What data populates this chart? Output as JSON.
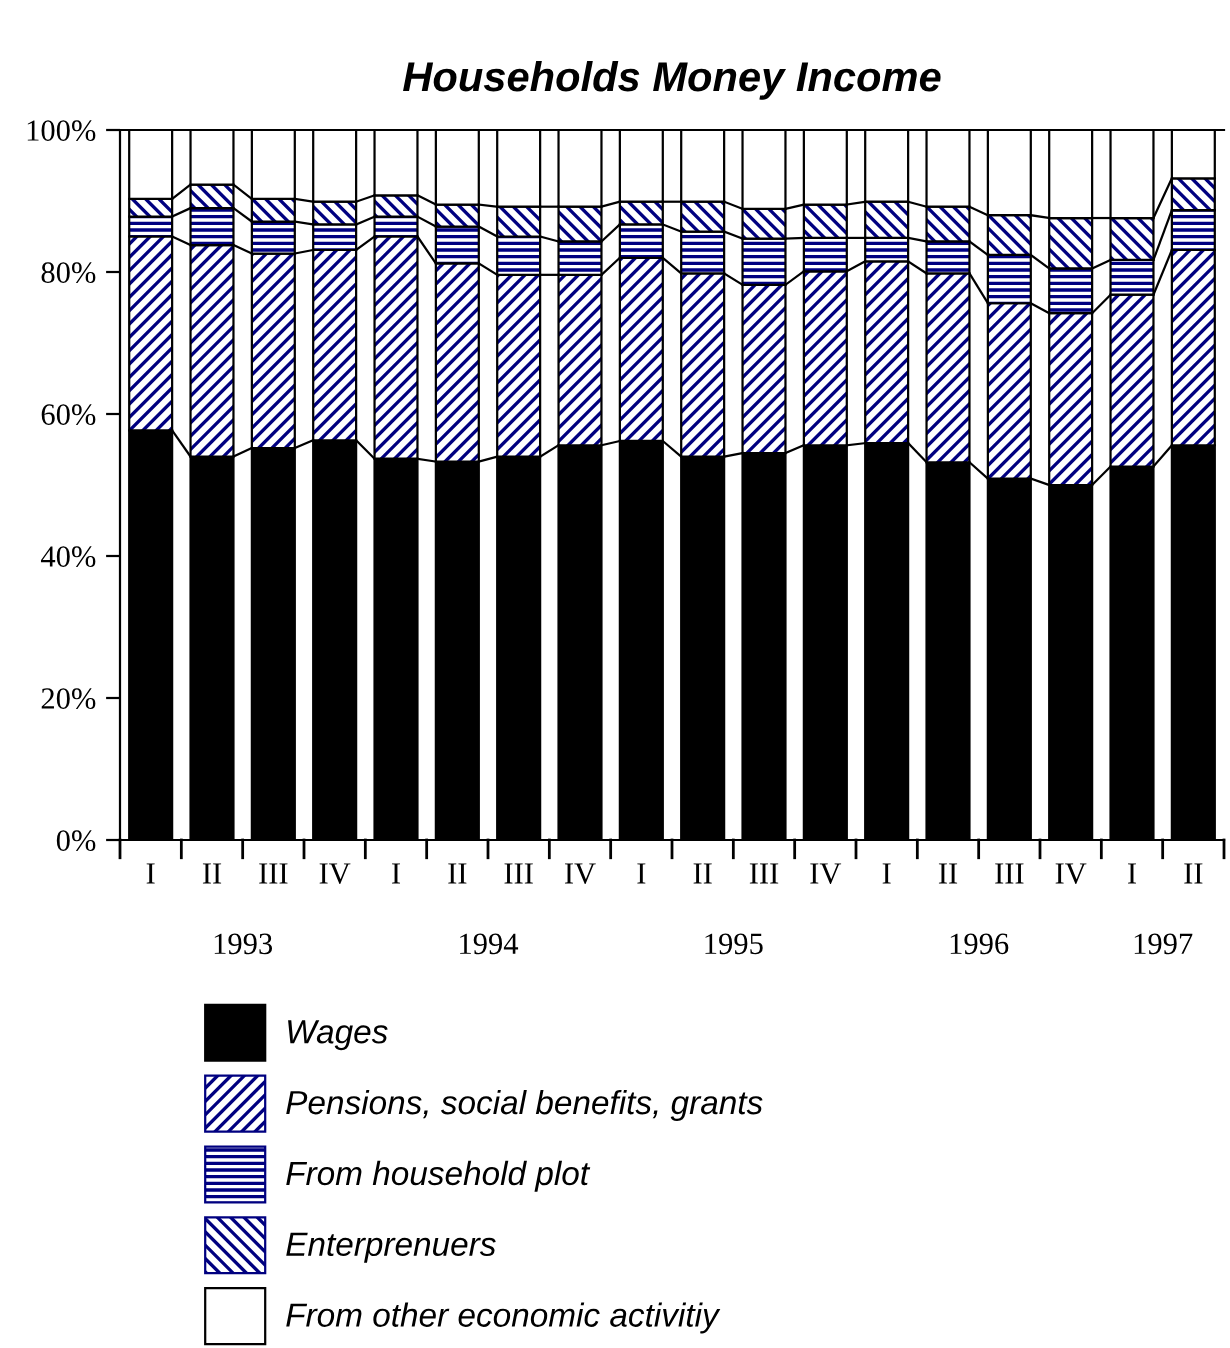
{
  "chart_data": {
    "type": "bar",
    "stacked": true,
    "title": "Households Money Income",
    "categories": [
      "I",
      "II",
      "III",
      "IV",
      "I",
      "II",
      "III",
      "IV",
      "I",
      "II",
      "III",
      "IV",
      "I",
      "II",
      "III",
      "IV",
      "I",
      "II"
    ],
    "annotations": [
      "1993",
      "1994",
      "1995",
      "1996",
      "1997"
    ],
    "series": [
      {
        "name": "Wages",
        "color": "#000000",
        "values": [
          57.7,
          54.0,
          55.2,
          56.3,
          53.7,
          53.3,
          54.0,
          55.6,
          56.2,
          54.0,
          54.5,
          55.6,
          55.9,
          53.2,
          50.9,
          50.0,
          52.6,
          55.6
        ]
      },
      {
        "name": "Pensions, social benefits, grants",
        "color": "#000080",
        "values": [
          27.3,
          29.8,
          27.4,
          26.8,
          31.3,
          27.9,
          25.6,
          24.0,
          25.8,
          25.8,
          23.7,
          24.5,
          25.6,
          26.6,
          24.7,
          24.2,
          24.2,
          27.5
        ]
      },
      {
        "name": "From household plot",
        "color": "#000080",
        "values": [
          2.8,
          5.2,
          4.5,
          3.6,
          2.8,
          5.2,
          5.4,
          4.7,
          4.7,
          5.9,
          6.5,
          4.7,
          3.3,
          4.5,
          6.8,
          6.3,
          4.9,
          5.6
        ]
      },
      {
        "name": "Enterprenuers",
        "color": "#000080",
        "values": [
          2.5,
          3.3,
          3.2,
          3.2,
          3.0,
          3.1,
          4.2,
          4.9,
          3.2,
          4.2,
          4.2,
          4.7,
          5.1,
          4.9,
          5.6,
          7.1,
          5.9,
          4.5
        ]
      },
      {
        "name": "From other economic activitiy",
        "color": "#ffffff",
        "values": [
          9.7,
          7.7,
          9.7,
          10.1,
          9.2,
          10.5,
          10.8,
          10.8,
          10.1,
          10.1,
          11.1,
          10.5,
          10.1,
          10.8,
          12.0,
          12.4,
          12.4,
          6.8
        ]
      }
    ],
    "ylim": [
      0,
      100
    ],
    "yticks": [
      {
        "value": 0,
        "label": "0%"
      },
      {
        "value": 20,
        "label": "20%"
      },
      {
        "value": 40,
        "label": "40%"
      },
      {
        "value": 60,
        "label": "60%"
      },
      {
        "value": 80,
        "label": "80%"
      },
      {
        "value": 100,
        "label": "100%"
      }
    ],
    "legend": "bottom",
    "grid": false
  }
}
